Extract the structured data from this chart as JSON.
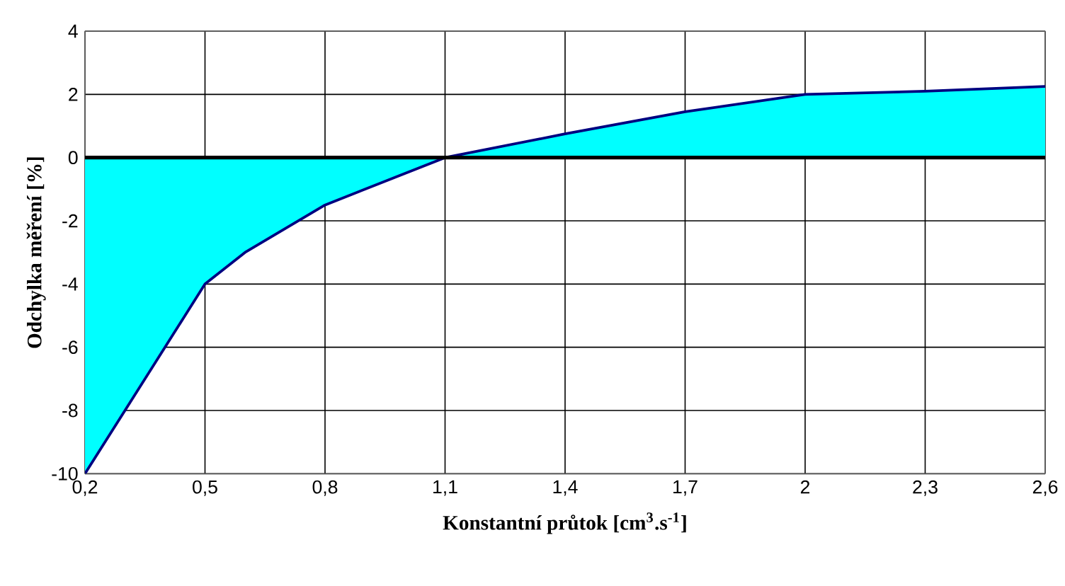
{
  "chart_data": {
    "type": "area",
    "xlabel": "Konstantní průtok [cm$^{3}$.s$^{-1}$]",
    "ylabel": "Odchylka měření [%]",
    "x": [
      0.2,
      0.3,
      0.4,
      0.5,
      0.6,
      0.8,
      1.0,
      1.1,
      1.4,
      1.7,
      2.0,
      2.3,
      2.6
    ],
    "series": [
      {
        "color": "#00ffff",
        "values": [
          -10,
          -8,
          -6,
          -4,
          -3,
          -1.5,
          -0.5,
          0,
          0.75,
          1.45,
          2.0,
          2.1,
          2.25
        ]
      }
    ],
    "xlim": [
      0.2,
      2.6
    ],
    "ylim": [
      -10,
      4
    ],
    "xticks": [
      {
        "value": 0.2,
        "label": "0,2"
      },
      {
        "value": 0.5,
        "label": "0,5"
      },
      {
        "value": 0.8,
        "label": "0,8"
      },
      {
        "value": 1.1,
        "label": "1,1"
      },
      {
        "value": 1.4,
        "label": "1,4"
      },
      {
        "value": 1.7,
        "label": "1,7"
      },
      {
        "value": 2,
        "label": "2"
      },
      {
        "value": 2.3,
        "label": "2,3"
      },
      {
        "value": 2.6,
        "label": "2,6"
      }
    ],
    "yticks": [
      -10,
      -8,
      -6,
      -4,
      -2,
      0,
      2,
      4
    ],
    "grid": true,
    "ref_lines": [
      {
        "axis": "y",
        "value": 0,
        "color": "#000000"
      }
    ]
  }
}
